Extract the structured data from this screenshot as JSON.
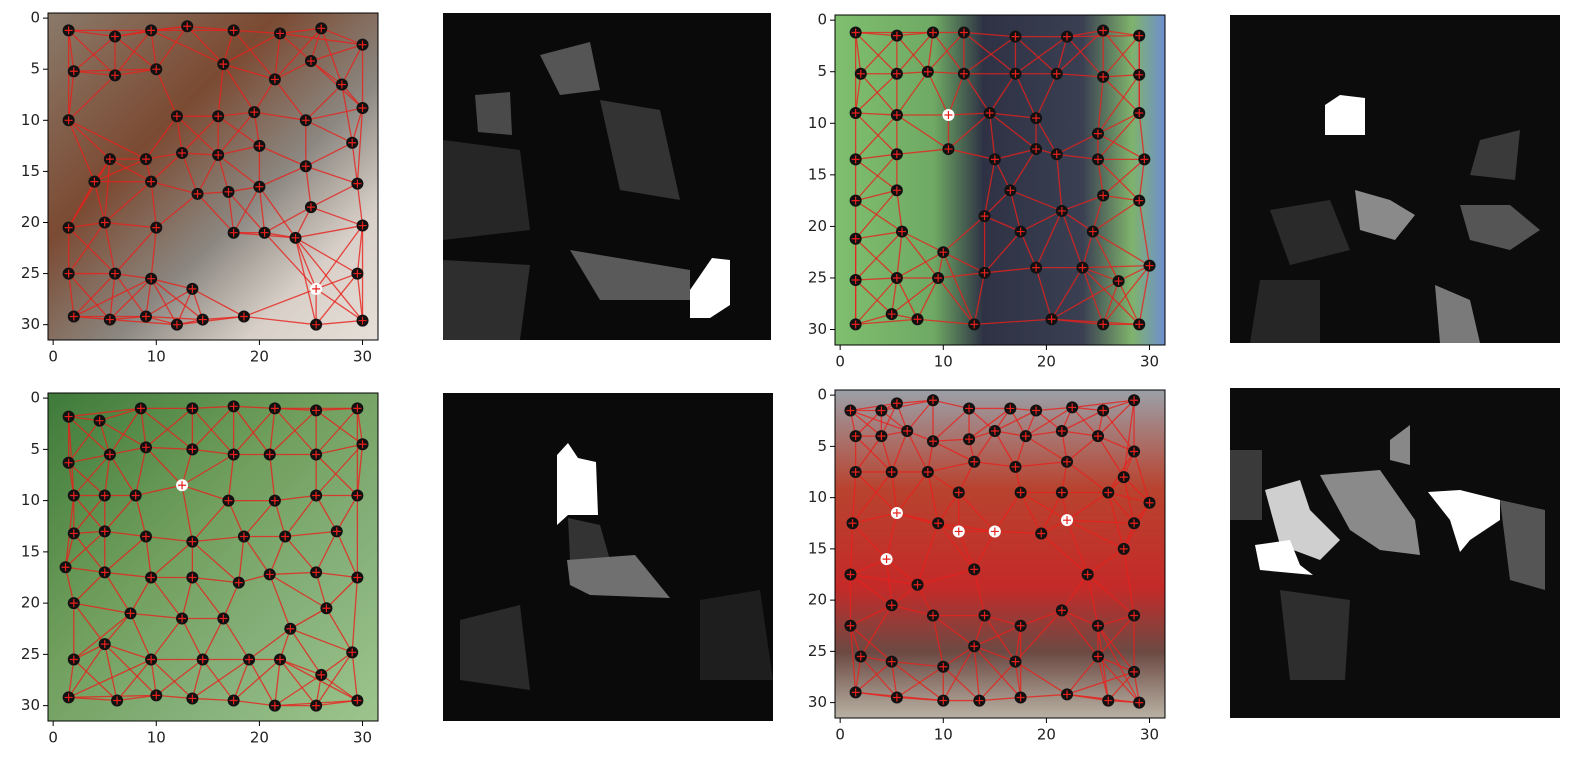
{
  "chart_data": [
    {
      "type": "scatter",
      "xlim": [
        -0.5,
        31.5
      ],
      "ylim": [
        31.5,
        -0.5
      ],
      "xticks": [
        0,
        10,
        20,
        30
      ],
      "yticks": [
        0,
        5,
        10,
        15,
        20,
        25,
        30
      ],
      "nodes": {
        "x": [
          1.5,
          6,
          9.5,
          13,
          17.5,
          22,
          26,
          30,
          2,
          6,
          10,
          16.5,
          21.5,
          25,
          28,
          30,
          1.5,
          12,
          16,
          19.5,
          24.5,
          5.5,
          9,
          12.5,
          16,
          20,
          24.5,
          29,
          4,
          9.5,
          14,
          17,
          20,
          29.5,
          1.5,
          5,
          10,
          17.5,
          20.5,
          23.5,
          25,
          1.5,
          6,
          9.5,
          13.5,
          29.5,
          30,
          2,
          5.5,
          9,
          12,
          14.5,
          18.5,
          25.5,
          30
        ],
        "y": [
          1.2,
          1.8,
          1.2,
          0.8,
          1.2,
          1.5,
          1,
          2.6,
          5.2,
          5.6,
          5,
          4.5,
          6,
          4.2,
          6.5,
          8.8,
          10,
          9.6,
          9.6,
          9.2,
          10,
          13.8,
          13.8,
          13.2,
          13.4,
          12.5,
          14.5,
          12.2,
          16,
          16,
          17.2,
          17,
          16.5,
          16.2,
          20.5,
          20,
          20.5,
          21,
          21,
          21.5,
          18.5,
          25,
          25,
          25.5,
          26.5,
          25,
          20.3,
          29.2,
          29.5,
          29.2,
          30,
          29.5,
          29.2,
          30,
          29.6
        ]
      },
      "highlight": {
        "x": [
          25.5
        ],
        "y": [
          26.5
        ]
      }
    },
    {
      "type": "scatter",
      "xlim": [
        -0.5,
        31.5
      ],
      "ylim": [
        31.5,
        -0.5
      ],
      "xticks": [
        0,
        10,
        20,
        30
      ],
      "yticks": [
        0,
        5,
        10,
        15,
        20,
        25,
        30
      ],
      "nodes": {
        "x": [
          1.5,
          5.5,
          9,
          12,
          17,
          22,
          25.5,
          29,
          2,
          5.5,
          8.5,
          12,
          17,
          21,
          25.5,
          29,
          1.5,
          5.5,
          14.5,
          19,
          25,
          29,
          29.5,
          1.5,
          5.5,
          10.5,
          15,
          19,
          21,
          25,
          1.5,
          5.5,
          16.5,
          25.5,
          29,
          1.5,
          6,
          10,
          14,
          17.5,
          21.5,
          24.5,
          1.5,
          5.5,
          9.5,
          14,
          19,
          23.5,
          27,
          30,
          1.5,
          5,
          7.5,
          13,
          20.5,
          25.5,
          29
        ],
        "y": [
          1.2,
          1.5,
          1.2,
          1.2,
          1.6,
          1.6,
          1,
          1.5,
          5.2,
          5.2,
          5,
          5.2,
          5.2,
          5.2,
          5.5,
          5.3,
          9,
          9.2,
          9,
          9.5,
          11,
          9,
          13.5,
          13.5,
          13,
          12.5,
          13.5,
          12.5,
          13,
          13.5,
          17.5,
          16.5,
          16.5,
          17,
          17.5,
          21.2,
          20.5,
          22.5,
          19,
          20.5,
          18.5,
          20.5,
          25.2,
          25,
          25,
          24.5,
          24,
          24,
          25.3,
          23.8,
          29.5,
          28.5,
          29,
          29.5,
          29,
          29.5,
          29.5
        ]
      },
      "highlight": {
        "x": [
          10.5
        ],
        "y": [
          9.2
        ]
      }
    },
    {
      "type": "scatter",
      "xlim": [
        -0.5,
        31.5
      ],
      "ylim": [
        31.5,
        -0.5
      ],
      "xticks": [
        0,
        10,
        20,
        30
      ],
      "yticks": [
        0,
        5,
        10,
        15,
        20,
        25,
        30
      ],
      "nodes": {
        "x": [
          1.5,
          4.5,
          8.5,
          13.5,
          17.5,
          21.5,
          25.5,
          29.5,
          1.5,
          5.5,
          9,
          13.5,
          17.5,
          21,
          25.5,
          30,
          2,
          5,
          8,
          17,
          21.5,
          25.5,
          29.5,
          2,
          5,
          9,
          13.5,
          18.5,
          22.5,
          27.5,
          1.2,
          5,
          9.5,
          13.5,
          18,
          21,
          25.5,
          29.5,
          2,
          7.5,
          12.5,
          16.5,
          23,
          26.5,
          2,
          5,
          9.5,
          14.5,
          19,
          22,
          26,
          29,
          1.5,
          6.2,
          10,
          13.5,
          17.5,
          21.5,
          25.5,
          29.5
        ],
        "y": [
          1.8,
          2.2,
          1,
          1,
          0.8,
          1,
          1.2,
          1,
          6.3,
          5.5,
          4.8,
          5,
          5.5,
          5.5,
          5.5,
          4.5,
          9.5,
          9.5,
          9.5,
          10,
          10,
          9.5,
          9.5,
          13.2,
          13,
          13.5,
          14,
          13.5,
          13.5,
          13,
          16.5,
          17,
          17.5,
          17.5,
          18,
          17.2,
          17,
          17.5,
          20,
          21,
          21.5,
          21.5,
          22.5,
          20.5,
          25.5,
          24,
          25.5,
          25.5,
          25.5,
          25.5,
          27,
          24.8,
          29.2,
          29.5,
          29,
          29.3,
          29.5,
          30,
          30,
          29.5
        ]
      },
      "highlight": {
        "x": [
          12.5
        ],
        "y": [
          8.5
        ]
      }
    },
    {
      "type": "scatter",
      "xlim": [
        -0.5,
        31.5
      ],
      "ylim": [
        31.5,
        -0.5
      ],
      "xticks": [
        0,
        10,
        20,
        30
      ],
      "yticks": [
        0,
        5,
        10,
        15,
        20,
        25,
        30
      ],
      "nodes": {
        "x": [
          1,
          4,
          5.5,
          9,
          12.5,
          16.5,
          19,
          22.5,
          25.5,
          28.5,
          1.5,
          4,
          6.5,
          9,
          12.5,
          15,
          18,
          21.5,
          25,
          28.5,
          1.5,
          5,
          8.5,
          13,
          17,
          22,
          27.5,
          1.2,
          11.5,
          17.5,
          21.5,
          26,
          30,
          9.5,
          28.5,
          1,
          7.5,
          13,
          19.5,
          24,
          27.5,
          1,
          5,
          9,
          14,
          17.5,
          21.5,
          25,
          28.5,
          2,
          5,
          10,
          13,
          17,
          25,
          28.5,
          1.5,
          5.5,
          10,
          13.5,
          17.5,
          22,
          26,
          29
        ],
        "y": [
          1.5,
          1.5,
          0.8,
          0.5,
          1.3,
          1.3,
          1.5,
          1.2,
          1.5,
          0.5,
          4,
          4,
          3.5,
          4.5,
          4.3,
          3.5,
          4,
          3.5,
          4,
          5.5,
          7.5,
          7.5,
          7.5,
          6.5,
          7,
          6.5,
          8,
          12.5,
          9.5,
          9.5,
          9.5,
          9.5,
          10.5,
          12.5,
          12.5,
          17.5,
          18.5,
          17,
          13.5,
          17.5,
          15,
          22.5,
          20.5,
          21.5,
          21.5,
          22.5,
          21,
          22.5,
          21.5,
          25.5,
          26,
          26.5,
          24.5,
          26,
          25.5,
          27,
          29,
          29.5,
          29.8,
          29.8,
          29.5,
          29.2,
          29.8,
          30
        ]
      },
      "highlight": {
        "x": [
          5.5,
          4.5,
          22,
          15,
          11.5
        ],
        "y": [
          11.5,
          16,
          12.2,
          13.3,
          13.3
        ]
      }
    }
  ]
}
